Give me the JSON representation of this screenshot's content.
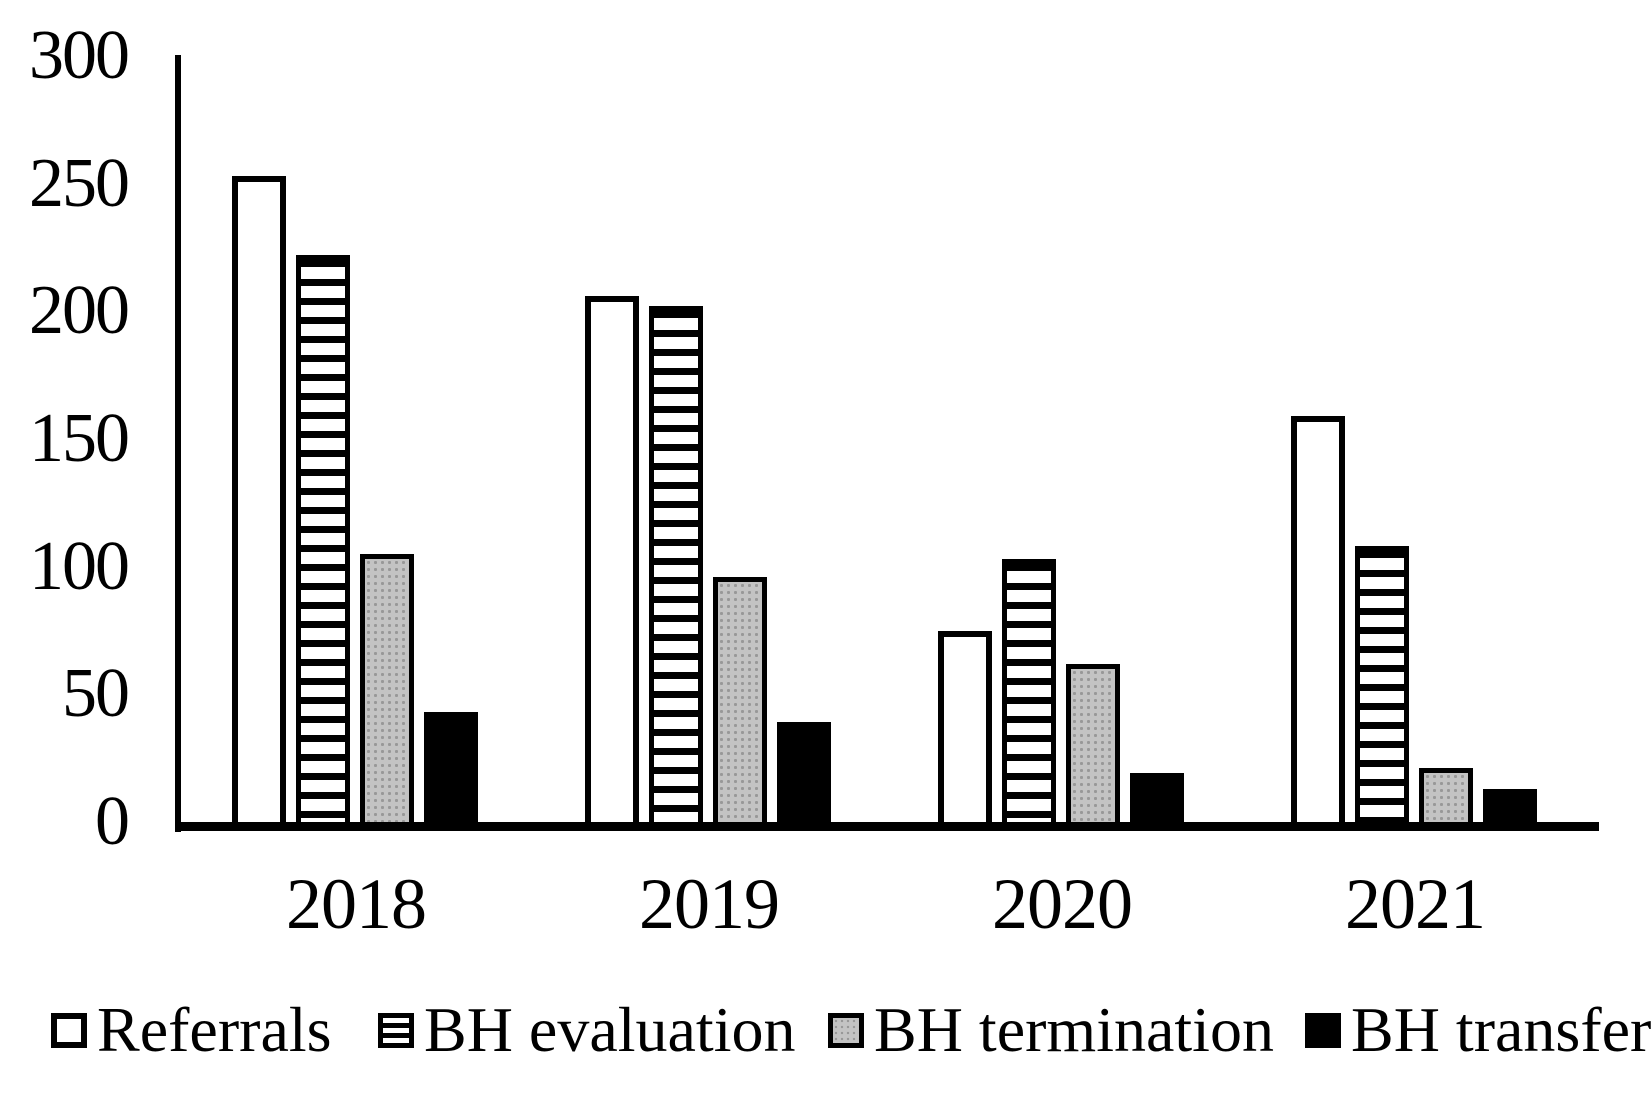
{
  "chart_data": {
    "type": "bar",
    "title": "",
    "xlabel": "",
    "ylabel": "",
    "categories": [
      "2018",
      "2019",
      "2020",
      "2021"
    ],
    "series": [
      {
        "name": "Referrals",
        "style": "white",
        "values": [
          253,
          206,
          75,
          159
        ]
      },
      {
        "name": "BH evaluation",
        "style": "hstripes",
        "values": [
          222,
          202,
          103,
          108
        ]
      },
      {
        "name": "BH termination",
        "style": "grayfill",
        "values": [
          105,
          96,
          62,
          21
        ]
      },
      {
        "name": "BH transfer",
        "style": "blackfill",
        "values": [
          43,
          39,
          19,
          13
        ]
      }
    ],
    "ylim": [
      0,
      300
    ],
    "yticks": [
      0,
      50,
      100,
      150,
      200,
      250,
      300
    ],
    "grid": false,
    "legend_position": "bottom"
  },
  "legend": {
    "items": [
      {
        "label": "Referrals",
        "swatch": "white-outline-square"
      },
      {
        "label": "BH evaluation",
        "swatch": "horizontal-stripes-square"
      },
      {
        "label": "BH termination",
        "swatch": "gray-dotted-square"
      },
      {
        "label": "BH transfer",
        "swatch": "solid-black-square"
      }
    ]
  },
  "colors": {
    "background": "#ffffff",
    "axis": "#000000",
    "bar_outline": "#000000",
    "gray_fill": "#c3c3c3",
    "black_fill": "#000000",
    "text": "#000000"
  }
}
